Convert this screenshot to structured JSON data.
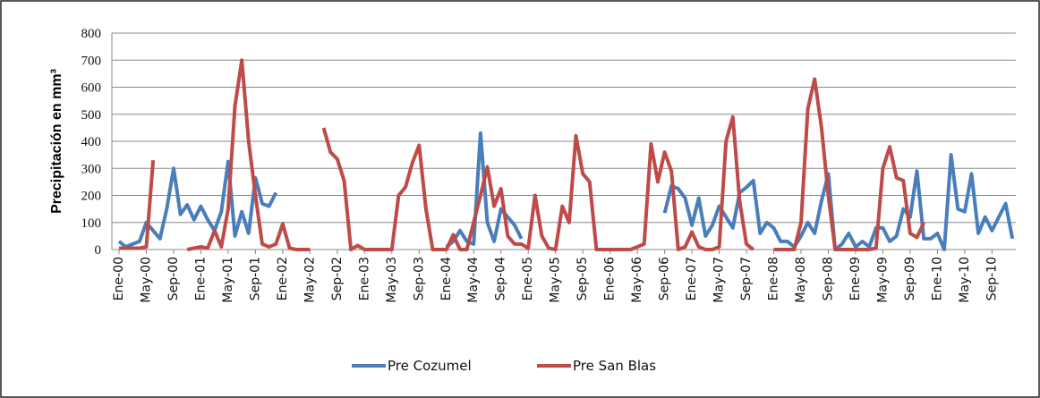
{
  "chart_data": {
    "type": "line",
    "y_label": "Precipitación en mm³",
    "categories": [
      "Ene-00",
      null,
      null,
      null,
      "May-00",
      null,
      null,
      null,
      "Sep-00",
      null,
      null,
      null,
      "Ene-01",
      null,
      null,
      null,
      "May-01",
      null,
      null,
      null,
      "Sep-01",
      null,
      null,
      null,
      "Ene-02",
      null,
      null,
      null,
      "May-02",
      null,
      null,
      null,
      "Sep-02",
      null,
      null,
      null,
      "Ene-03",
      null,
      null,
      null,
      "May-03",
      null,
      null,
      null,
      "Sep-03",
      null,
      null,
      null,
      "Ene-04",
      null,
      null,
      null,
      "May-04",
      null,
      null,
      null,
      "Sep-04",
      null,
      null,
      null,
      "Ene-05",
      null,
      null,
      null,
      "May-05",
      null,
      null,
      null,
      "Sep-05",
      null,
      null,
      null,
      "Ene-06",
      null,
      null,
      null,
      "May-06",
      null,
      null,
      null,
      "Sep-06",
      null,
      null,
      null,
      "Ene-07",
      null,
      null,
      null,
      "May-07",
      null,
      null,
      null,
      "Sep-07",
      null,
      null,
      null,
      "Ene-08",
      null,
      null,
      null,
      "May-08",
      null,
      null,
      null,
      "Sep-08",
      null,
      null,
      null,
      "Ene-09",
      null,
      null,
      null,
      "May-09",
      null,
      null,
      null,
      "Sep-09",
      null,
      null,
      null,
      "Ene-10",
      null,
      null,
      null,
      "May-10",
      null,
      null,
      null,
      "Sep-10",
      null,
      null,
      null
    ],
    "series": [
      {
        "name": "Pre Cozumel",
        "color": "#4a7ebb",
        "values": [
          30,
          10,
          20,
          30,
          100,
          70,
          40,
          150,
          300,
          130,
          165,
          110,
          160,
          110,
          70,
          140,
          325,
          50,
          140,
          60,
          265,
          170,
          160,
          210,
          null,
          null,
          null,
          null,
          null,
          null,
          null,
          null,
          null,
          null,
          null,
          null,
          null,
          null,
          null,
          null,
          null,
          null,
          null,
          null,
          null,
          null,
          null,
          null,
          10,
          30,
          70,
          30,
          20,
          430,
          100,
          30,
          150,
          120,
          90,
          40,
          null,
          null,
          null,
          null,
          null,
          null,
          null,
          null,
          null,
          null,
          null,
          null,
          null,
          null,
          null,
          null,
          null,
          null,
          null,
          null,
          135,
          235,
          225,
          190,
          90,
          190,
          50,
          90,
          160,
          120,
          80,
          210,
          230,
          255,
          60,
          100,
          80,
          30,
          30,
          10,
          50,
          100,
          60,
          180,
          280,
          0,
          20,
          60,
          10,
          30,
          10,
          80,
          80,
          30,
          50,
          150,
          120,
          290,
          40,
          40,
          60,
          0,
          350,
          150,
          140,
          280,
          60,
          120,
          70,
          120,
          170,
          40
        ]
      },
      {
        "name": "Pre San Blas",
        "color": "#be4b48",
        "values": [
          5,
          5,
          5,
          5,
          10,
          330,
          null,
          null,
          null,
          null,
          0,
          5,
          10,
          5,
          70,
          10,
          150,
          530,
          700,
          400,
          200,
          20,
          10,
          20,
          95,
          5,
          0,
          0,
          0,
          null,
          450,
          360,
          335,
          255,
          0,
          15,
          0,
          0,
          0,
          0,
          0,
          200,
          230,
          320,
          385,
          150,
          0,
          0,
          0,
          55,
          0,
          0,
          100,
          200,
          305,
          160,
          225,
          50,
          20,
          20,
          5,
          200,
          50,
          5,
          0,
          160,
          100,
          420,
          280,
          250,
          0,
          0,
          0,
          0,
          0,
          0,
          10,
          20,
          390,
          250,
          360,
          290,
          0,
          10,
          65,
          10,
          0,
          0,
          10,
          400,
          490,
          180,
          20,
          0,
          null,
          null,
          0,
          0,
          0,
          0,
          100,
          520,
          630,
          450,
          200,
          0,
          0,
          0,
          0,
          0,
          0,
          5,
          300,
          380,
          265,
          255,
          60,
          45,
          100,
          null,
          null,
          null,
          null,
          null,
          null,
          null,
          null,
          null,
          null,
          null,
          null,
          null
        ]
      }
    ],
    "ylim": [
      0,
      800
    ],
    "yticks": [
      0,
      100,
      200,
      300,
      400,
      500,
      600,
      700,
      800
    ],
    "grid": true,
    "legend": "bottom"
  }
}
